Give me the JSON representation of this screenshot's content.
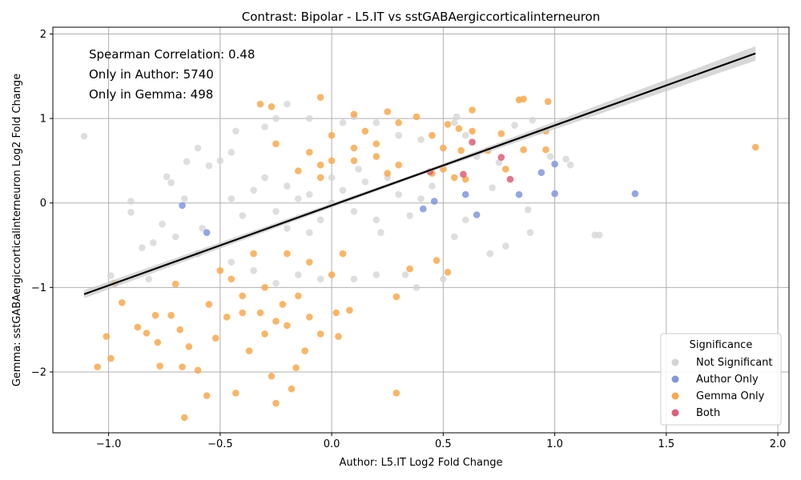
{
  "chart_data": {
    "type": "scatter",
    "title": "Contrast: Bipolar - L5.IT vs sstGABAergiccorticalinterneuron",
    "xlabel": "Author: L5.IT Log2 Fold Change",
    "ylabel": "Gemma: sstGABAergiccorticalinterneuron Log2 Fold Change",
    "xlim": [
      -1.25,
      2.05
    ],
    "ylim": [
      -2.72,
      2.08
    ],
    "xticks": [
      -1.0,
      -0.5,
      0.0,
      0.5,
      1.0,
      1.5,
      2.0
    ],
    "xtick_labels": [
      "−1.0",
      "−0.5",
      "0.0",
      "0.5",
      "1.0",
      "1.5",
      "2.0"
    ],
    "yticks": [
      -2,
      -1,
      0,
      1,
      2
    ],
    "ytick_labels": [
      "−2",
      "−1",
      "0",
      "1",
      "2"
    ],
    "grid": true,
    "legend_title": "Significance",
    "legend_position": "bottom-right",
    "annotations": [
      "Spearman Correlation: 0.48",
      "Only in Author: 5740",
      "Only in Gemma: 498"
    ],
    "regression_line": {
      "x": [
        -1.11,
        1.9
      ],
      "y": [
        -1.08,
        1.77
      ]
    },
    "series": [
      {
        "name": "Not Significant",
        "color": "#d3d3d3",
        "points": [
          [
            -1.11,
            0.79
          ],
          [
            -0.99,
            -0.86
          ],
          [
            -0.98,
            -0.95
          ],
          [
            -0.9,
            -0.11
          ],
          [
            -0.9,
            0.02
          ],
          [
            -0.85,
            -0.53
          ],
          [
            -0.82,
            -0.9
          ],
          [
            -0.8,
            -0.47
          ],
          [
            -0.76,
            -0.25
          ],
          [
            -0.74,
            0.31
          ],
          [
            -0.72,
            0.24
          ],
          [
            -0.66,
            0.05
          ],
          [
            -0.65,
            0.49
          ],
          [
            -0.6,
            0.65
          ],
          [
            -0.58,
            -0.3
          ],
          [
            -0.55,
            0.44
          ],
          [
            -0.5,
            0.5
          ],
          [
            -0.45,
            0.6
          ],
          [
            -0.43,
            0.85
          ],
          [
            -0.3,
            0.9
          ],
          [
            -0.25,
            1.0
          ],
          [
            -0.2,
            1.17
          ],
          [
            -0.1,
            1.0
          ],
          [
            0.05,
            0.95
          ],
          [
            0.1,
            1.02
          ],
          [
            0.2,
            0.95
          ],
          [
            0.3,
            0.8
          ],
          [
            0.4,
            0.75
          ],
          [
            0.55,
            0.95
          ],
          [
            0.56,
            1.02
          ],
          [
            0.6,
            0.8
          ],
          [
            0.65,
            0.55
          ],
          [
            0.72,
            0.18
          ],
          [
            0.75,
            0.48
          ],
          [
            0.82,
            0.92
          ],
          [
            0.9,
            0.98
          ],
          [
            0.93,
            0.85
          ],
          [
            0.98,
            0.55
          ],
          [
            1.05,
            0.52
          ],
          [
            1.07,
            0.45
          ],
          [
            1.18,
            -0.38
          ],
          [
            1.2,
            -0.38
          ],
          [
            0.88,
            -0.08
          ],
          [
            0.89,
            -0.35
          ],
          [
            0.78,
            -0.51
          ],
          [
            0.71,
            -0.6
          ],
          [
            0.6,
            -0.2
          ],
          [
            0.55,
            -0.4
          ],
          [
            0.5,
            -0.9
          ],
          [
            0.38,
            -1.0
          ],
          [
            0.33,
            -0.85
          ],
          [
            0.2,
            -0.85
          ],
          [
            0.1,
            -0.9
          ],
          [
            -0.05,
            -0.9
          ],
          [
            -0.15,
            -0.85
          ],
          [
            -0.25,
            -0.95
          ],
          [
            -0.35,
            -0.8
          ],
          [
            -0.45,
            -0.7
          ],
          [
            -0.6,
            -0.6
          ],
          [
            -0.7,
            -0.4
          ],
          [
            -0.3,
            0.3
          ],
          [
            -0.2,
            0.2
          ],
          [
            -0.1,
            0.1
          ],
          [
            0.0,
            0.0
          ],
          [
            0.1,
            -0.1
          ],
          [
            0.2,
            -0.2
          ],
          [
            -0.25,
            -0.1
          ],
          [
            -0.15,
            0.05
          ],
          [
            0.05,
            0.15
          ],
          [
            0.15,
            0.25
          ],
          [
            0.25,
            0.3
          ],
          [
            0.3,
            0.1
          ],
          [
            -0.35,
            0.15
          ],
          [
            -0.4,
            -0.15
          ],
          [
            -0.45,
            0.05
          ],
          [
            0.35,
            -0.15
          ],
          [
            0.4,
            0.05
          ],
          [
            0.45,
            0.2
          ],
          [
            -0.05,
            -0.2
          ],
          [
            0.0,
            0.3
          ],
          [
            -0.1,
            -0.35
          ],
          [
            0.12,
            0.4
          ],
          [
            -0.2,
            -0.3
          ],
          [
            0.22,
            -0.35
          ]
        ]
      },
      {
        "name": "Author Only",
        "color": "#8096df",
        "points": [
          [
            -0.67,
            -0.03
          ],
          [
            -0.56,
            -0.35
          ],
          [
            0.41,
            -0.07
          ],
          [
            0.46,
            0.02
          ],
          [
            0.6,
            0.1
          ],
          [
            0.65,
            -0.14
          ],
          [
            0.84,
            0.1
          ],
          [
            0.94,
            0.36
          ],
          [
            1.0,
            0.11
          ],
          [
            1.0,
            0.46
          ],
          [
            1.36,
            0.11
          ]
        ]
      },
      {
        "name": "Gemma Only",
        "color": "#f9a94b",
        "points": [
          [
            -1.05,
            -1.94
          ],
          [
            -1.01,
            -1.58
          ],
          [
            -0.99,
            -1.84
          ],
          [
            -0.97,
            -0.95
          ],
          [
            -0.94,
            -1.18
          ],
          [
            -0.87,
            -1.47
          ],
          [
            -0.83,
            -1.54
          ],
          [
            -0.79,
            -1.33
          ],
          [
            -0.78,
            -1.65
          ],
          [
            -0.77,
            -1.93
          ],
          [
            -0.72,
            -1.33
          ],
          [
            -0.7,
            -0.96
          ],
          [
            -0.68,
            -1.5
          ],
          [
            -0.67,
            -1.94
          ],
          [
            -0.66,
            -2.54
          ],
          [
            -0.64,
            -1.7
          ],
          [
            -0.6,
            -1.98
          ],
          [
            -0.56,
            -2.28
          ],
          [
            -0.55,
            -1.2
          ],
          [
            -0.52,
            -1.6
          ],
          [
            -0.5,
            -0.8
          ],
          [
            -0.47,
            -1.35
          ],
          [
            -0.43,
            -2.25
          ],
          [
            -0.4,
            -1.1
          ],
          [
            -0.37,
            -1.75
          ],
          [
            -0.32,
            -1.3
          ],
          [
            -0.3,
            -1.55
          ],
          [
            -0.27,
            -2.05
          ],
          [
            -0.25,
            -2.37
          ],
          [
            -0.22,
            -1.2
          ],
          [
            -0.2,
            -1.45
          ],
          [
            -0.18,
            -2.2
          ],
          [
            -0.16,
            -1.95
          ],
          [
            -0.12,
            -1.75
          ],
          [
            -0.1,
            -1.35
          ],
          [
            -0.05,
            -1.55
          ],
          [
            0.0,
            -0.85
          ],
          [
            0.02,
            -1.3
          ],
          [
            0.03,
            -1.58
          ],
          [
            0.08,
            -1.27
          ],
          [
            0.29,
            -2.25
          ],
          [
            0.29,
            -1.11
          ],
          [
            0.35,
            -0.78
          ],
          [
            0.52,
            -0.82
          ],
          [
            0.47,
            -0.68
          ],
          [
            -0.2,
            -0.6
          ],
          [
            -0.1,
            -0.7
          ],
          [
            0.05,
            -0.6
          ],
          [
            -0.32,
            1.17
          ],
          [
            -0.27,
            1.14
          ],
          [
            -0.05,
            1.25
          ],
          [
            -0.25,
            0.7
          ],
          [
            -0.1,
            0.6
          ],
          [
            0.0,
            0.8
          ],
          [
            0.1,
            0.65
          ],
          [
            0.1,
            1.05
          ],
          [
            0.15,
            0.85
          ],
          [
            0.2,
            0.7
          ],
          [
            0.25,
            1.08
          ],
          [
            0.3,
            0.95
          ],
          [
            0.38,
            1.02
          ],
          [
            0.45,
            0.8
          ],
          [
            0.5,
            0.65
          ],
          [
            0.52,
            0.93
          ],
          [
            0.57,
            0.88
          ],
          [
            0.58,
            0.62
          ],
          [
            0.63,
            0.85
          ],
          [
            0.63,
            1.1
          ],
          [
            0.7,
            0.62
          ],
          [
            0.76,
            0.82
          ],
          [
            0.78,
            0.4
          ],
          [
            0.84,
            1.22
          ],
          [
            0.86,
            1.23
          ],
          [
            0.86,
            0.63
          ],
          [
            0.96,
            0.63
          ],
          [
            0.96,
            0.85
          ],
          [
            0.97,
            1.2
          ],
          [
            1.9,
            0.66
          ],
          [
            0.45,
            0.35
          ],
          [
            0.5,
            0.4
          ],
          [
            0.55,
            0.3
          ],
          [
            0.6,
            0.28
          ],
          [
            -0.05,
            0.45
          ],
          [
            -0.15,
            0.38
          ],
          [
            -0.3,
            -1.0
          ],
          [
            -0.4,
            -1.3
          ],
          [
            -0.45,
            -0.9
          ],
          [
            -0.35,
            -0.6
          ],
          [
            -0.25,
            -1.4
          ],
          [
            -0.15,
            -1.1
          ],
          [
            0.1,
            0.5
          ],
          [
            0.2,
            0.55
          ],
          [
            0.25,
            0.35
          ],
          [
            -0.05,
            0.3
          ],
          [
            0.3,
            0.45
          ],
          [
            0.0,
            0.5
          ]
        ]
      },
      {
        "name": "Both",
        "color": "#e05c77",
        "points": [
          [
            0.44,
            0.37
          ],
          [
            0.59,
            0.34
          ],
          [
            0.63,
            0.72
          ],
          [
            0.76,
            0.54
          ],
          [
            0.8,
            0.28
          ]
        ]
      }
    ]
  }
}
